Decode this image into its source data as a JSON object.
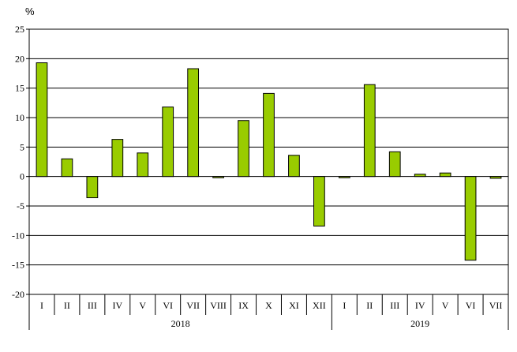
{
  "chart_data": {
    "type": "bar",
    "unit_label": "%",
    "ylim": [
      -20,
      25
    ],
    "y_ticks": [
      25,
      20,
      15,
      10,
      5,
      0,
      -5,
      -10,
      -15,
      -20
    ],
    "grid": true,
    "bar_color": "#99CC00",
    "categories": [
      "I",
      "II",
      "III",
      "IV",
      "V",
      "VI",
      "VII",
      "VIII",
      "IX",
      "X",
      "XI",
      "XII",
      "I",
      "II",
      "III",
      "IV",
      "V",
      "VI",
      "VII"
    ],
    "values": [
      19.3,
      3.0,
      -3.6,
      6.3,
      4.0,
      11.8,
      18.3,
      -0.2,
      9.5,
      14.1,
      3.6,
      -8.4,
      -0.2,
      15.6,
      4.2,
      0.4,
      0.6,
      -14.2,
      -0.3
    ],
    "groups": [
      {
        "label": "2018",
        "count": 12
      },
      {
        "label": "2019",
        "count": 7
      }
    ]
  }
}
